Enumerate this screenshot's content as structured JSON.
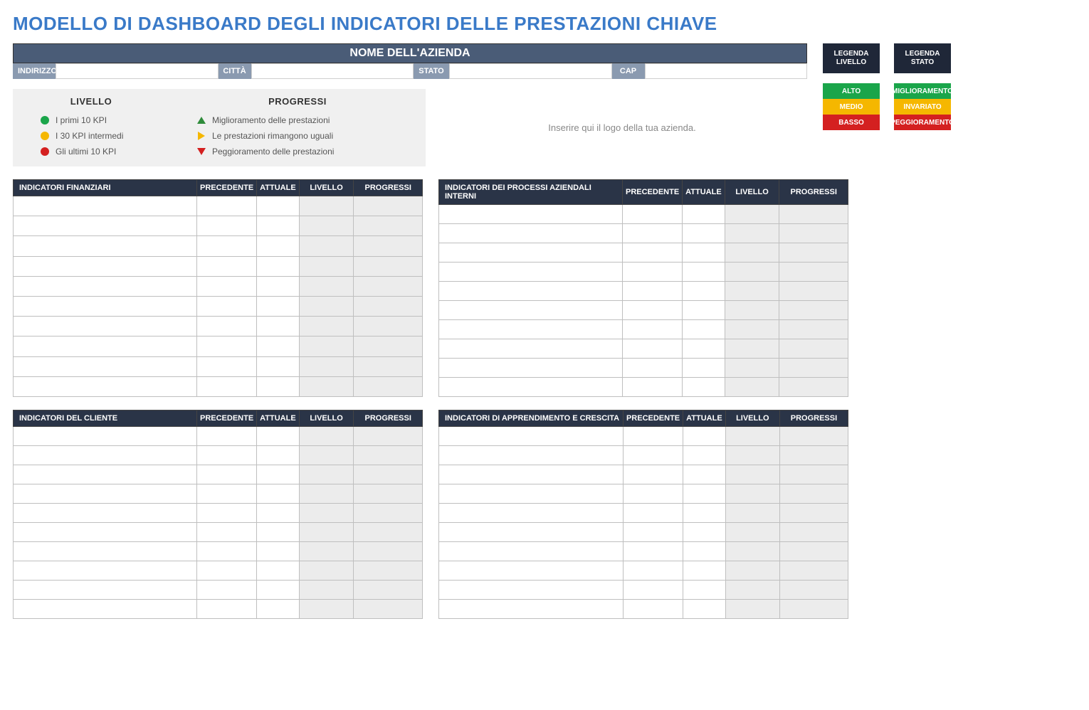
{
  "title": "MODELLO DI DASHBOARD DEGLI INDICATORI DELLE PRESTAZIONI CHIAVE",
  "company": {
    "header": "NOME DELL'AZIENDA",
    "labels": {
      "address": "INDIRIZZO",
      "city": "CITTÀ",
      "state": "STATO",
      "zip": "CAP"
    },
    "values": {
      "address": "",
      "city": "",
      "state": "",
      "zip": ""
    }
  },
  "logo_placeholder": "Inserire qui il logo della tua azienda.",
  "legend_main": {
    "level_head": "LIVELLO",
    "progress_head": "PROGRESSI",
    "level_items": [
      {
        "color": "#1aa54a",
        "label": "I primi 10 KPI"
      },
      {
        "color": "#f5b700",
        "label": "I 30 KPI intermedi"
      },
      {
        "color": "#d42020",
        "label": "Gli ultimi 10 KPI"
      }
    ],
    "progress_items": [
      {
        "shape": "up",
        "label": "Miglioramento delle prestazioni"
      },
      {
        "shape": "right",
        "label": "Le prestazioni rimangono uguali"
      },
      {
        "shape": "down",
        "label": "Peggioramento delle prestazioni"
      }
    ]
  },
  "legend_box_level": {
    "head": "LEGENDA LIVELLO",
    "rows": [
      {
        "label": "ALTO",
        "bg": "#1aa54a"
      },
      {
        "label": "MEDIO",
        "bg": "#f5b700"
      },
      {
        "label": "BASSO",
        "bg": "#d42020"
      }
    ]
  },
  "legend_box_status": {
    "head": "LEGENDA STATO",
    "rows": [
      {
        "label": "MIGLIORAMENTO",
        "bg": "#1aa54a"
      },
      {
        "label": "INVARIATO",
        "bg": "#f5b700"
      },
      {
        "label": "PEGGIORAMENTO",
        "bg": "#d42020"
      }
    ]
  },
  "table_cols": {
    "prev": "PRECEDENTE",
    "curr": "ATTUALE",
    "level": "LIVELLO",
    "progress": "PROGRESSI"
  },
  "tables": [
    {
      "title": "INDICATORI FINANZIARI",
      "rows": 10
    },
    {
      "title": "INDICATORI DEI PROCESSI AZIENDALI INTERNI",
      "rows": 10
    },
    {
      "title": "INDICATORI DEL CLIENTE",
      "rows": 10
    },
    {
      "title": "INDICATORI DI APPRENDIMENTO E CRESCITA",
      "rows": 10
    }
  ],
  "colors": {
    "title": "#3a7ac8",
    "header_dark": "#4a5c77",
    "label_mid": "#8a9ab0",
    "section_dark": "#2a3447",
    "legend_bg": "#f0f0f0",
    "shade": "#ececec"
  }
}
